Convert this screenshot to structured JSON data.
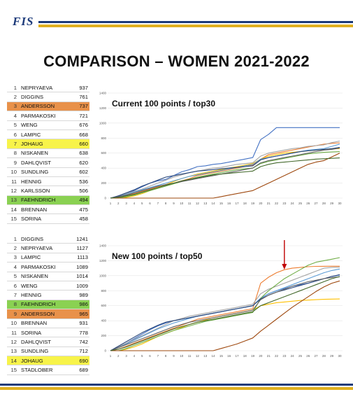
{
  "logo_text": "FIS",
  "title": "COMPARISON – WOMEN 2021-2022",
  "colors": {
    "navy": "#1c3a7a",
    "gold": "#e0b020",
    "highlight_yellow": "#f7f34a",
    "highlight_orange": "#e8914a",
    "highlight_green": "#8ad152"
  },
  "table_current": [
    {
      "rank": "1",
      "name": "NEPRYAEVA",
      "points": "937",
      "hl": ""
    },
    {
      "rank": "2",
      "name": "DIGGINS",
      "points": "761",
      "hl": ""
    },
    {
      "rank": "3",
      "name": "ANDERSSON",
      "points": "737",
      "hl": "orange"
    },
    {
      "rank": "4",
      "name": "PARMAKOSKI",
      "points": "721",
      "hl": ""
    },
    {
      "rank": "5",
      "name": "WENG",
      "points": "676",
      "hl": ""
    },
    {
      "rank": "6",
      "name": "LAMPIC",
      "points": "668",
      "hl": ""
    },
    {
      "rank": "7",
      "name": "JOHAUG",
      "points": "660",
      "hl": "yellow"
    },
    {
      "rank": "8",
      "name": "NISKANEN",
      "points": "638",
      "hl": ""
    },
    {
      "rank": "9",
      "name": "DAHLQVIST",
      "points": "620",
      "hl": ""
    },
    {
      "rank": "10",
      "name": "SUNDLING",
      "points": "602",
      "hl": ""
    },
    {
      "rank": "11",
      "name": "HENNIG",
      "points": "536",
      "hl": ""
    },
    {
      "rank": "12",
      "name": "KARLSSON",
      "points": "506",
      "hl": ""
    },
    {
      "rank": "13",
      "name": "FAEHNDRICH",
      "points": "494",
      "hl": "green"
    },
    {
      "rank": "14",
      "name": "BRENNAN",
      "points": "475",
      "hl": ""
    },
    {
      "rank": "15",
      "name": "SORINA",
      "points": "458",
      "hl": ""
    }
  ],
  "table_new": [
    {
      "rank": "1",
      "name": "DIGGINS",
      "points": "1241",
      "hl": ""
    },
    {
      "rank": "2",
      "name": "NEPRYAEVA",
      "points": "1127",
      "hl": ""
    },
    {
      "rank": "3",
      "name": "LAMPIC",
      "points": "1113",
      "hl": ""
    },
    {
      "rank": "4",
      "name": "PARMAKOSKI",
      "points": "1089",
      "hl": ""
    },
    {
      "rank": "5",
      "name": "NISKANEN",
      "points": "1014",
      "hl": ""
    },
    {
      "rank": "6",
      "name": "WENG",
      "points": "1009",
      "hl": ""
    },
    {
      "rank": "7",
      "name": "HENNIG",
      "points": "989",
      "hl": ""
    },
    {
      "rank": "8",
      "name": "FAEHNDRICH",
      "points": "986",
      "hl": "green"
    },
    {
      "rank": "9",
      "name": "ANDERSSON",
      "points": "965",
      "hl": "orange"
    },
    {
      "rank": "10",
      "name": "BRENNAN",
      "points": "931",
      "hl": ""
    },
    {
      "rank": "11",
      "name": "SORINA",
      "points": "778",
      "hl": ""
    },
    {
      "rank": "12",
      "name": "DAHLQVIST",
      "points": "742",
      "hl": ""
    },
    {
      "rank": "13",
      "name": "SUNDLING",
      "points": "712",
      "hl": ""
    },
    {
      "rank": "14",
      "name": "JOHAUG",
      "points": "690",
      "hl": "yellow"
    },
    {
      "rank": "15",
      "name": "STADLOBER",
      "points": "689",
      "hl": ""
    }
  ],
  "chart_data": [
    {
      "type": "line",
      "title": "Current 100 points / top30",
      "x": [
        1,
        2,
        3,
        4,
        5,
        6,
        7,
        8,
        9,
        10,
        11,
        12,
        13,
        14,
        15,
        16,
        17,
        18,
        19,
        20,
        21,
        22,
        23,
        24,
        25,
        26,
        27,
        28,
        29,
        30
      ],
      "ylim": [
        0,
        1400
      ],
      "yticks": [
        0,
        200,
        400,
        600,
        800,
        1000,
        1200,
        1400
      ],
      "series": [
        {
          "color": "#4472c4",
          "values": [
            0,
            20,
            60,
            100,
            150,
            200,
            230,
            250,
            300,
            350,
            380,
            420,
            430,
            450,
            460,
            480,
            500,
            520,
            540,
            780,
            850,
            940,
            940,
            940,
            940,
            940,
            940,
            940,
            940,
            940
          ]
        },
        {
          "color": "#ed7d31",
          "values": [
            0,
            10,
            40,
            60,
            90,
            120,
            150,
            180,
            200,
            230,
            260,
            300,
            320,
            340,
            360,
            380,
            400,
            420,
            440,
            520,
            580,
            600,
            620,
            640,
            660,
            680,
            700,
            720,
            730,
            737
          ]
        },
        {
          "color": "#a5a5a5",
          "values": [
            0,
            30,
            60,
            90,
            120,
            160,
            200,
            240,
            280,
            310,
            340,
            360,
            380,
            400,
            410,
            430,
            450,
            460,
            470,
            560,
            600,
            620,
            640,
            660,
            670,
            690,
            700,
            710,
            740,
            761
          ]
        },
        {
          "color": "#ffc000",
          "values": [
            0,
            0,
            10,
            30,
            60,
            100,
            140,
            180,
            220,
            260,
            290,
            320,
            340,
            360,
            380,
            400,
            420,
            440,
            460,
            520,
            560,
            580,
            600,
            610,
            620,
            630,
            640,
            650,
            655,
            660
          ]
        },
        {
          "color": "#5b9bd5",
          "values": [
            0,
            20,
            50,
            80,
            110,
            140,
            170,
            200,
            230,
            260,
            290,
            310,
            330,
            350,
            370,
            390,
            410,
            430,
            450,
            520,
            540,
            560,
            580,
            600,
            620,
            640,
            650,
            660,
            690,
            721
          ]
        },
        {
          "color": "#70ad47",
          "values": [
            0,
            0,
            20,
            40,
            70,
            100,
            130,
            160,
            190,
            220,
            250,
            280,
            300,
            320,
            340,
            360,
            380,
            390,
            400,
            460,
            490,
            510,
            530,
            550,
            570,
            590,
            600,
            610,
            615,
            620
          ]
        },
        {
          "color": "#264478",
          "values": [
            0,
            30,
            70,
            110,
            160,
            200,
            240,
            280,
            300,
            320,
            340,
            360,
            370,
            380,
            390,
            400,
            410,
            420,
            430,
            510,
            540,
            560,
            580,
            600,
            620,
            630,
            640,
            650,
            660,
            676
          ]
        },
        {
          "color": "#9e480e",
          "values": [
            0,
            0,
            0,
            0,
            0,
            0,
            0,
            0,
            0,
            0,
            0,
            0,
            0,
            0,
            20,
            40,
            60,
            80,
            100,
            150,
            200,
            250,
            300,
            350,
            400,
            450,
            480,
            500,
            550,
            600
          ]
        },
        {
          "color": "#636363",
          "values": [
            0,
            20,
            40,
            70,
            100,
            130,
            160,
            180,
            200,
            220,
            240,
            260,
            280,
            300,
            320,
            340,
            360,
            380,
            400,
            470,
            500,
            520,
            540,
            560,
            580,
            600,
            620,
            640,
            650,
            668
          ]
        },
        {
          "color": "#43682b",
          "values": [
            0,
            10,
            30,
            50,
            80,
            110,
            140,
            170,
            200,
            230,
            250,
            270,
            290,
            310,
            320,
            330,
            340,
            350,
            360,
            420,
            450,
            470,
            480,
            490,
            500,
            510,
            520,
            525,
            530,
            536
          ]
        }
      ]
    },
    {
      "type": "line",
      "title": "New 100 points / top50",
      "x": [
        1,
        2,
        3,
        4,
        5,
        6,
        7,
        8,
        9,
        10,
        11,
        12,
        13,
        14,
        15,
        16,
        17,
        18,
        19,
        20,
        21,
        22,
        23,
        24,
        25,
        26,
        27,
        28,
        29,
        30
      ],
      "ylim": [
        0,
        1400
      ],
      "yticks": [
        0,
        200,
        400,
        600,
        800,
        1000,
        1200,
        1400
      ],
      "annotation": {
        "type": "arrow",
        "x": 23,
        "color": "#c00000"
      },
      "series": [
        {
          "color": "#4472c4",
          "values": [
            0,
            40,
            100,
            160,
            220,
            280,
            330,
            370,
            400,
            420,
            440,
            460,
            480,
            500,
            520,
            540,
            560,
            580,
            600,
            700,
            760,
            800,
            830,
            860,
            880,
            900,
            930,
            960,
            990,
            1009
          ]
        },
        {
          "color": "#ed7d31",
          "values": [
            0,
            20,
            60,
            100,
            140,
            180,
            220,
            260,
            300,
            340,
            380,
            420,
            440,
            460,
            480,
            500,
            520,
            540,
            560,
            900,
            980,
            1040,
            1080,
            1100,
            1110,
            1120,
            1125,
            1126,
            1127,
            1127
          ]
        },
        {
          "color": "#a5a5a5",
          "values": [
            0,
            50,
            100,
            150,
            200,
            250,
            300,
            350,
            400,
            430,
            460,
            480,
            500,
            520,
            540,
            560,
            580,
            600,
            620,
            760,
            820,
            860,
            900,
            940,
            980,
            1020,
            1060,
            1100,
            1110,
            1113
          ]
        },
        {
          "color": "#ffc000",
          "values": [
            0,
            0,
            20,
            50,
            90,
            140,
            190,
            230,
            270,
            310,
            350,
            380,
            410,
            440,
            460,
            480,
            500,
            520,
            540,
            600,
            620,
            640,
            650,
            660,
            670,
            675,
            680,
            685,
            688,
            690
          ]
        },
        {
          "color": "#5b9bd5",
          "values": [
            0,
            40,
            90,
            140,
            190,
            240,
            290,
            330,
            370,
            400,
            430,
            460,
            480,
            500,
            520,
            540,
            560,
            580,
            600,
            700,
            760,
            800,
            840,
            880,
            920,
            960,
            1000,
            1040,
            1070,
            1089
          ]
        },
        {
          "color": "#70ad47",
          "values": [
            0,
            0,
            30,
            70,
            110,
            150,
            190,
            230,
            270,
            300,
            330,
            360,
            390,
            410,
            430,
            450,
            470,
            490,
            510,
            700,
            800,
            880,
            960,
            1020,
            1080,
            1140,
            1180,
            1200,
            1220,
            1241
          ]
        },
        {
          "color": "#264478",
          "values": [
            0,
            60,
            120,
            180,
            240,
            290,
            340,
            380,
            400,
            420,
            440,
            460,
            480,
            500,
            520,
            540,
            560,
            580,
            600,
            690,
            740,
            780,
            810,
            840,
            870,
            900,
            930,
            960,
            990,
            1014
          ]
        },
        {
          "color": "#9e480e",
          "values": [
            0,
            0,
            0,
            0,
            0,
            0,
            0,
            0,
            0,
            0,
            0,
            0,
            0,
            0,
            30,
            60,
            90,
            130,
            170,
            260,
            340,
            420,
            500,
            580,
            650,
            720,
            790,
            850,
            900,
            931
          ]
        },
        {
          "color": "#636363",
          "values": [
            0,
            40,
            80,
            120,
            160,
            200,
            240,
            280,
            320,
            350,
            380,
            400,
            420,
            440,
            460,
            480,
            500,
            520,
            540,
            680,
            740,
            780,
            820,
            860,
            890,
            920,
            940,
            960,
            975,
            986
          ]
        },
        {
          "color": "#43682b",
          "values": [
            0,
            20,
            50,
            90,
            130,
            170,
            210,
            250,
            290,
            320,
            350,
            380,
            400,
            420,
            440,
            460,
            480,
            500,
            520,
            600,
            640,
            680,
            720,
            760,
            800,
            840,
            880,
            920,
            960,
            989
          ]
        }
      ]
    }
  ]
}
